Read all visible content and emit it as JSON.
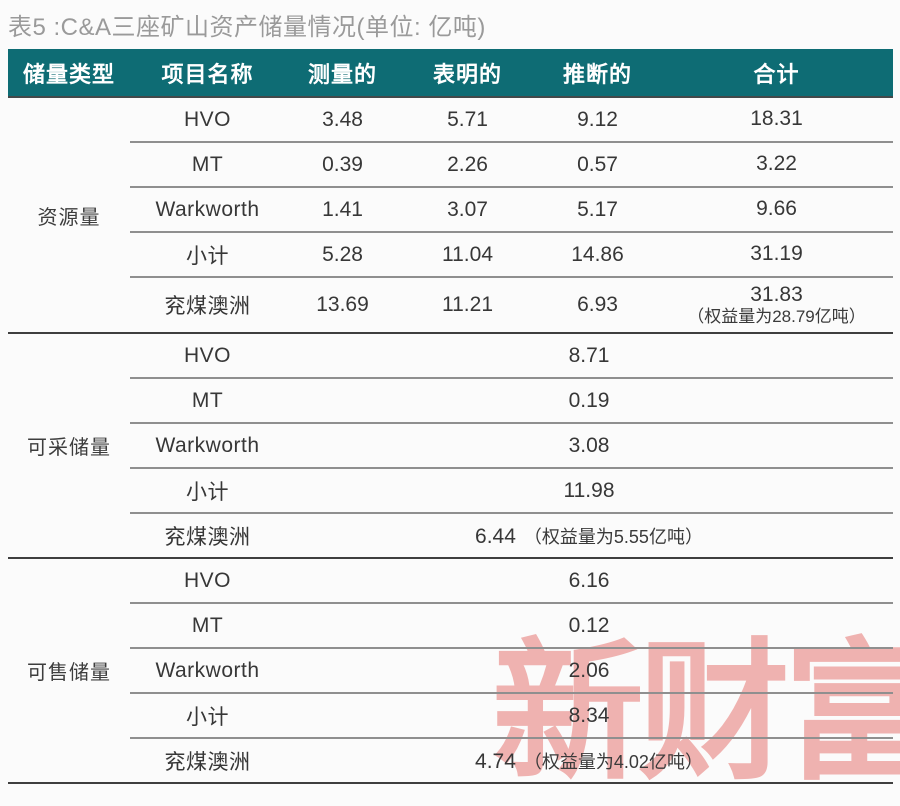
{
  "page": {
    "title": "表5 :C&A三座矿山资产储量情况(单位: 亿吨)",
    "watermark": "新财富"
  },
  "colors": {
    "header_bg": "#0e6c74",
    "header_text": "#ffffff",
    "title_text": "#9a9a9a",
    "body_text": "#373737",
    "watermark_red": "#e0504a"
  },
  "chart_data": {
    "type": "table",
    "title": "表5 :C&A三座矿山资产储量情况(单位: 亿吨)",
    "columns": [
      "储量类型",
      "项目名称",
      "测量的",
      "表明的",
      "推断的",
      "合计"
    ],
    "sections": [
      {
        "type_label": "资源量",
        "rows": [
          {
            "project": "HVO",
            "measured": "3.48",
            "indicated": "5.71",
            "inferred": "9.12",
            "total": "18.31"
          },
          {
            "project": "MT",
            "measured": "0.39",
            "indicated": "2.26",
            "inferred": "0.57",
            "total": "3.22"
          },
          {
            "project": "Warkworth",
            "measured": "1.41",
            "indicated": "3.07",
            "inferred": "5.17",
            "total": "9.66"
          },
          {
            "project": "小计",
            "measured": "5.28",
            "indicated": "11.04",
            "inferred": "14.86",
            "total": "31.19"
          },
          {
            "project": "兖煤澳洲",
            "measured": "13.69",
            "indicated": "11.21",
            "inferred": "6.93",
            "total": "31.83",
            "total_note": "（权益量为28.79亿吨）"
          }
        ]
      },
      {
        "type_label": "可采储量",
        "rows": [
          {
            "project": "HVO",
            "merged": "8.71"
          },
          {
            "project": "MT",
            "merged": "0.19"
          },
          {
            "project": "Warkworth",
            "merged": "3.08"
          },
          {
            "project": "小计",
            "merged": "11.98"
          },
          {
            "project": "兖煤澳洲",
            "merged": "6.44",
            "merged_note": "（权益量为5.55亿吨）"
          }
        ]
      },
      {
        "type_label": "可售储量",
        "rows": [
          {
            "project": "HVO",
            "merged": "6.16"
          },
          {
            "project": "MT",
            "merged": "0.12"
          },
          {
            "project": "Warkworth",
            "merged": "2.06"
          },
          {
            "project": "小计",
            "merged": "8.34"
          },
          {
            "project": "兖煤澳洲",
            "merged": "4.74",
            "merged_note": "（权益量为4.02亿吨）"
          }
        ]
      }
    ]
  }
}
